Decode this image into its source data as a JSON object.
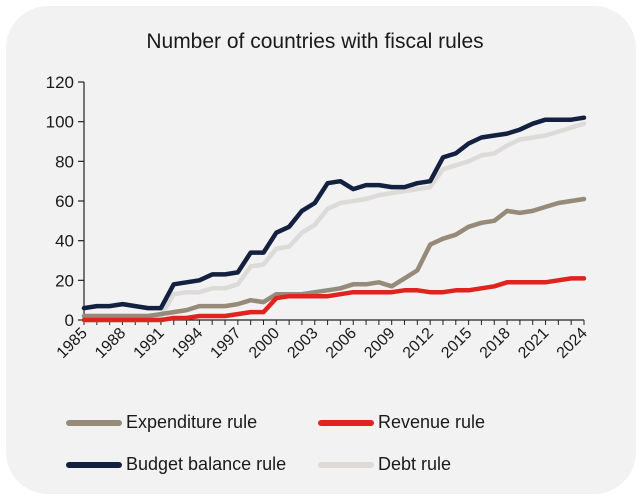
{
  "chart_data": {
    "type": "line",
    "title": "Number of countries with fiscal rules",
    "xlabel": "",
    "ylabel": "",
    "ylim": [
      0,
      120
    ],
    "yticks": [
      0,
      20,
      40,
      60,
      80,
      100,
      120
    ],
    "xticks": [
      "1985",
      "1988",
      "1991",
      "1994",
      "1997",
      "2000",
      "2003",
      "2006",
      "2009",
      "2012",
      "2015",
      "2018",
      "2021",
      "2024"
    ],
    "x": [
      1985,
      1986,
      1987,
      1988,
      1989,
      1990,
      1991,
      1992,
      1993,
      1994,
      1995,
      1996,
      1997,
      1998,
      1999,
      2000,
      2001,
      2002,
      2003,
      2004,
      2005,
      2006,
      2007,
      2008,
      2009,
      2010,
      2011,
      2012,
      2013,
      2014,
      2015,
      2016,
      2017,
      2018,
      2019,
      2020,
      2021,
      2022,
      2023,
      2024
    ],
    "grid": false,
    "legend_position": "bottom",
    "series": [
      {
        "name": "Expenditure rule",
        "color": "#958b78",
        "values": [
          2,
          2,
          2,
          2,
          2,
          2,
          3,
          4,
          5,
          7,
          7,
          7,
          8,
          10,
          9,
          13,
          13,
          13,
          14,
          15,
          16,
          18,
          18,
          19,
          17,
          21,
          25,
          38,
          41,
          43,
          47,
          49,
          50,
          55,
          54,
          55,
          57,
          59,
          60,
          61
        ]
      },
      {
        "name": "Revenue rule",
        "color": "#e0231e",
        "values": [
          0,
          0,
          0,
          0,
          0,
          0,
          0,
          1,
          1,
          2,
          2,
          2,
          3,
          4,
          4,
          11,
          12,
          12,
          12,
          12,
          13,
          14,
          14,
          14,
          14,
          15,
          15,
          14,
          14,
          15,
          15,
          16,
          17,
          19,
          19,
          19,
          19,
          20,
          21,
          21
        ]
      },
      {
        "name": "Budget balance rule",
        "color": "#14203f",
        "values": [
          6,
          7,
          7,
          8,
          7,
          6,
          6,
          18,
          19,
          20,
          23,
          23,
          24,
          34,
          34,
          44,
          47,
          55,
          59,
          69,
          70,
          66,
          68,
          68,
          67,
          67,
          69,
          70,
          82,
          84,
          89,
          92,
          93,
          94,
          96,
          99,
          101,
          101,
          101,
          102
        ]
      },
      {
        "name": "Debt rule",
        "color": "#dcdbd7",
        "values": [
          0,
          0,
          0,
          0,
          0,
          1,
          2,
          13,
          14,
          14,
          16,
          16,
          18,
          27,
          28,
          36,
          37,
          44,
          48,
          56,
          59,
          60,
          61,
          63,
          64,
          65,
          66,
          67,
          76,
          78,
          80,
          83,
          84,
          88,
          91,
          92,
          93,
          95,
          97,
          99
        ]
      }
    ]
  }
}
